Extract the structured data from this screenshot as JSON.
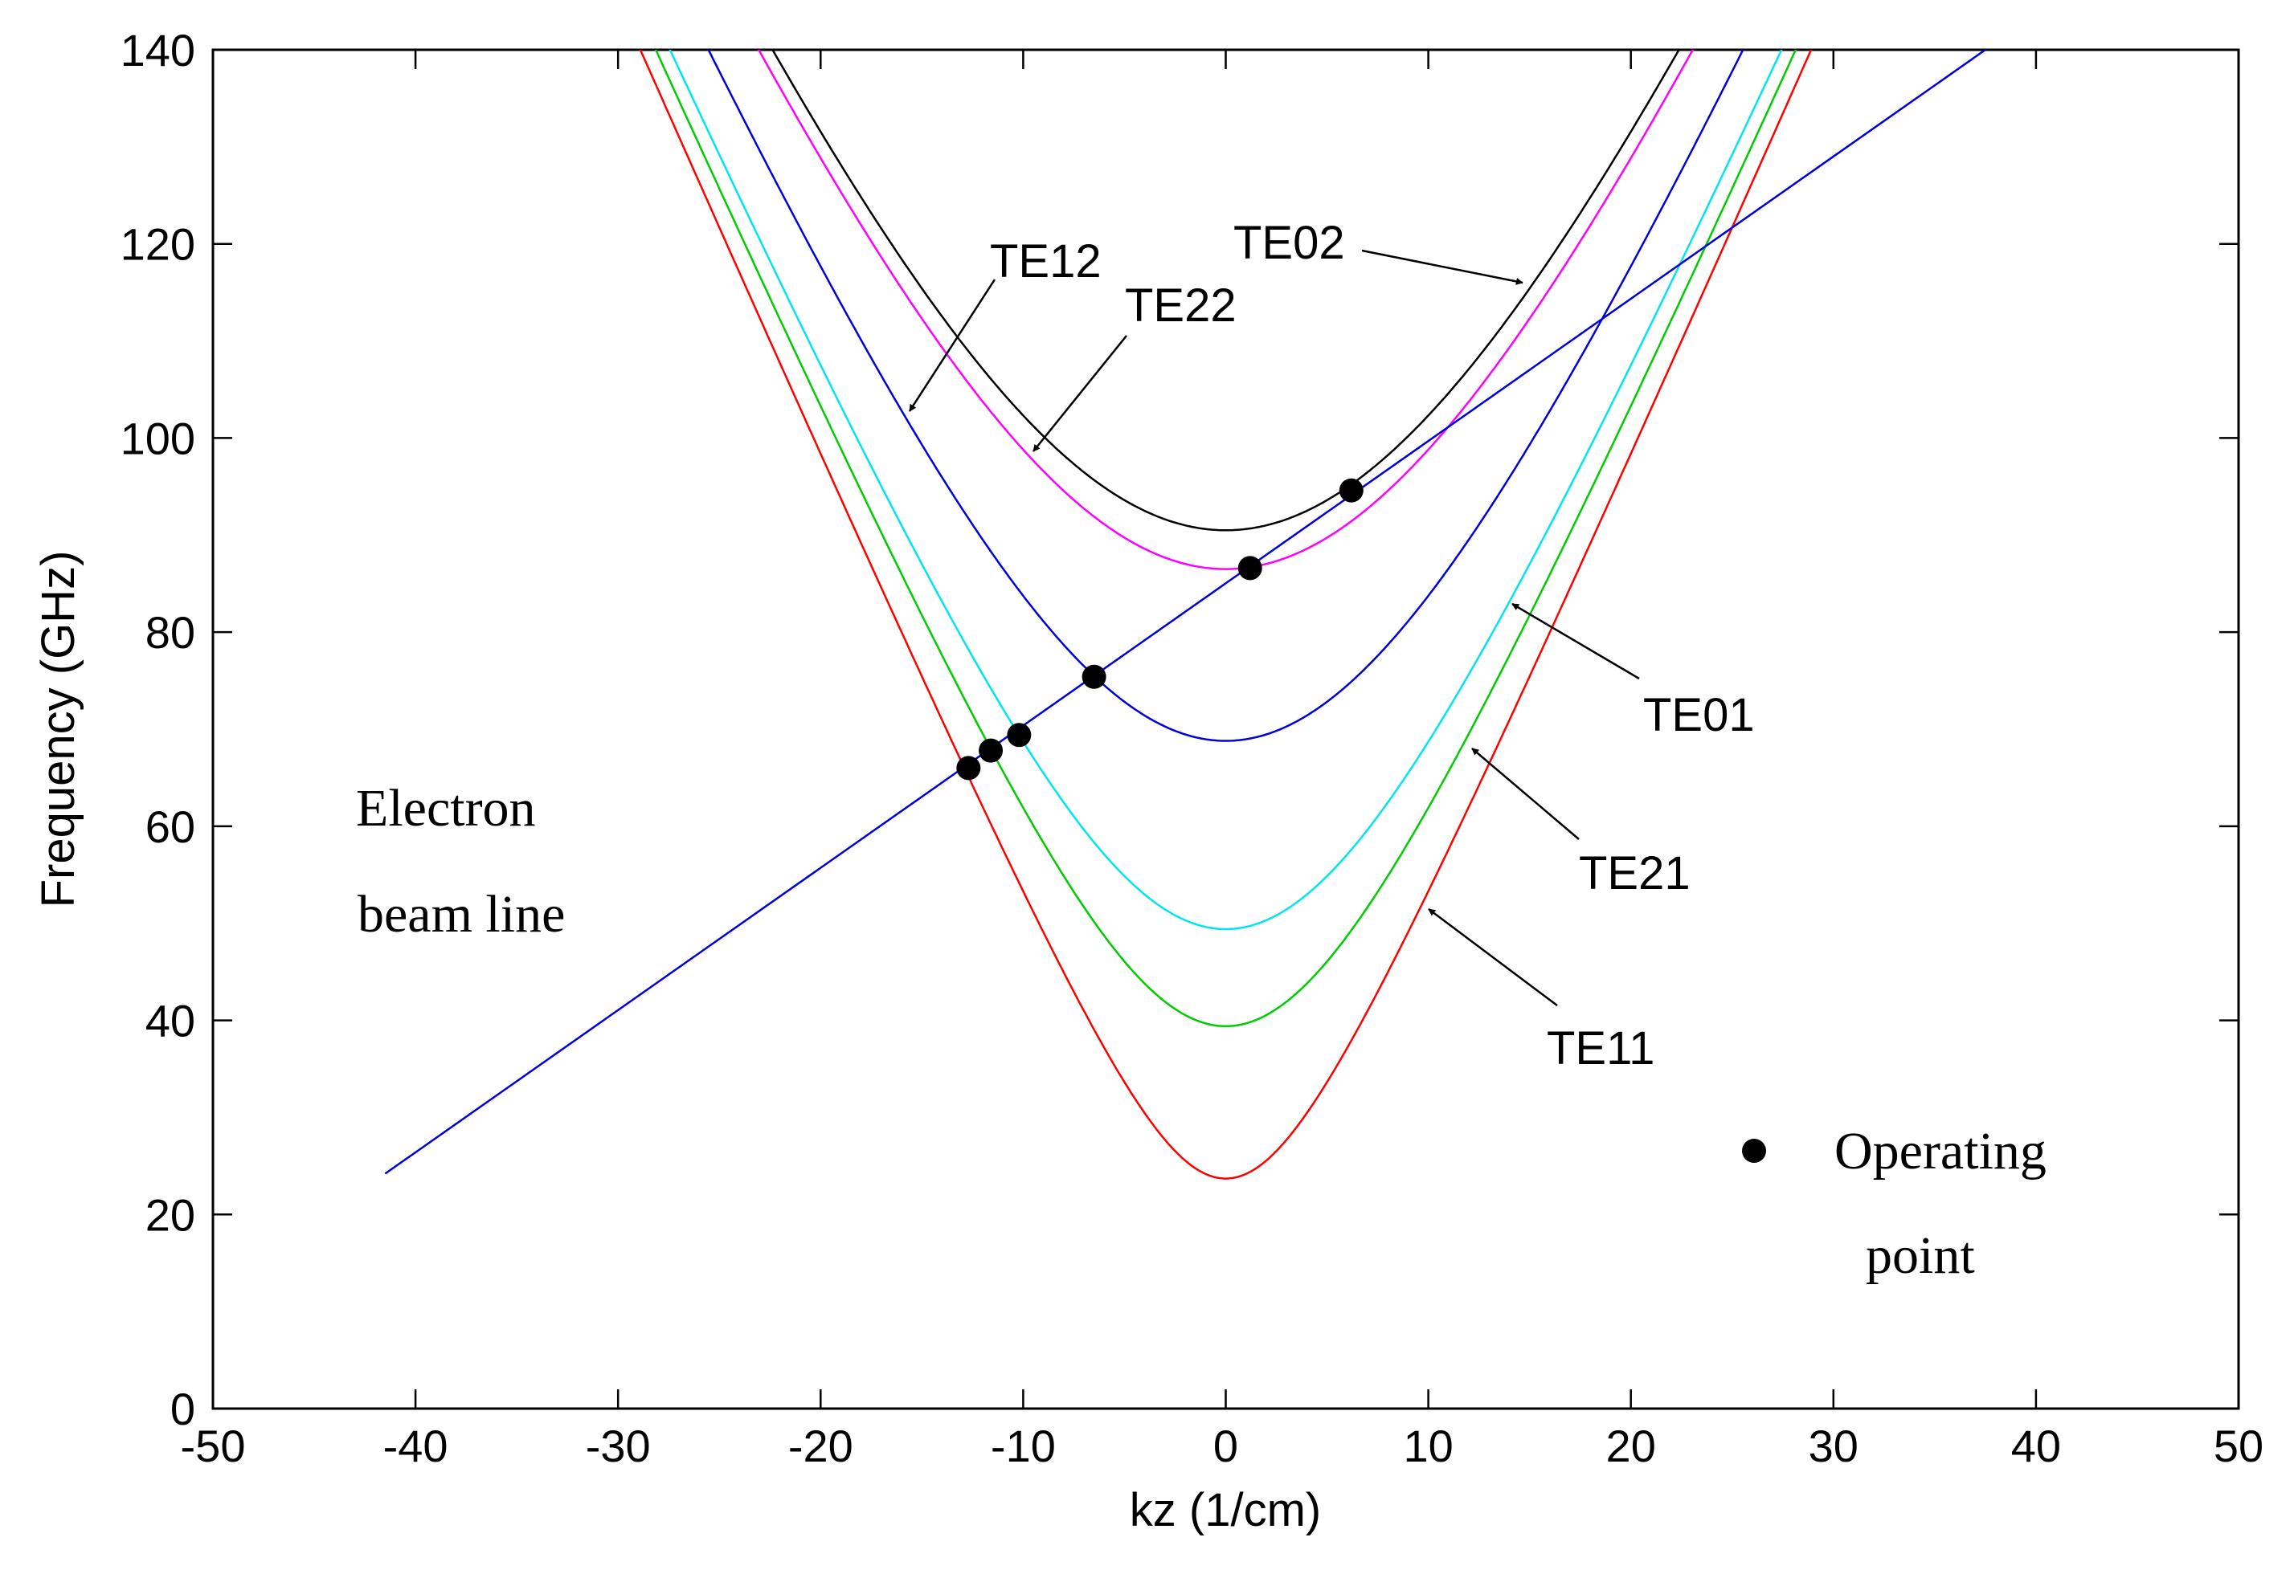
{
  "chart_data": {
    "type": "line",
    "title": "",
    "xlabel": "kz (1/cm)",
    "ylabel": "Frequency (GHz)",
    "xlim": [
      -50,
      50
    ],
    "ylim": [
      0,
      140
    ],
    "x_ticks": [
      "-50",
      "-40",
      "-30",
      "-20",
      "-10",
      "0",
      "10",
      "20",
      "30",
      "40",
      "50"
    ],
    "y_ticks": [
      "0",
      "20",
      "40",
      "60",
      "80",
      "100",
      "120",
      "140"
    ],
    "grid": false,
    "light_speed_slope_ghz_per_inv_cm": 4.7746,
    "series": [
      {
        "name": "TE11",
        "kind": "dispersion",
        "cutoff_ghz": 23.7,
        "color": "#ff0000"
      },
      {
        "name": "TE21",
        "kind": "dispersion",
        "cutoff_ghz": 39.4,
        "color": "#00cc00"
      },
      {
        "name": "TE01",
        "kind": "dispersion",
        "cutoff_ghz": 49.4,
        "color": "#00e5ee"
      },
      {
        "name": "TE12",
        "kind": "dispersion",
        "cutoff_ghz": 68.8,
        "color": "#0000dd"
      },
      {
        "name": "TE22",
        "kind": "dispersion",
        "cutoff_ghz": 86.5,
        "color": "#ff00ff"
      },
      {
        "name": "TE02",
        "kind": "dispersion",
        "cutoff_ghz": 90.5,
        "color": "#000000"
      },
      {
        "name": "Electron beam line",
        "kind": "line",
        "x": [
          -41.5,
          37.5
        ],
        "y": [
          24.2,
          140
        ],
        "color": "#0000dd"
      }
    ],
    "operating_points": [
      {
        "x": -12.7,
        "y": 66.0
      },
      {
        "x": -11.6,
        "y": 67.8
      },
      {
        "x": -10.2,
        "y": 69.4
      },
      {
        "x": -6.5,
        "y": 75.4
      },
      {
        "x": 1.2,
        "y": 86.6
      },
      {
        "x": 6.2,
        "y": 94.6
      }
    ],
    "annotations": [
      {
        "text": "TE02",
        "target": "TE02"
      },
      {
        "text": "TE12",
        "target": "TE12"
      },
      {
        "text": "TE22",
        "target": "TE22"
      },
      {
        "text": "TE01",
        "target": "TE01"
      },
      {
        "text": "TE21",
        "target": "TE21"
      },
      {
        "text": "TE11",
        "target": "TE11"
      }
    ],
    "beam_label_line1": "Electron",
    "beam_label_line2": "beam line",
    "legend_label_line1": "Operating",
    "legend_label_line2": "point",
    "legend_position": "bottom-right"
  }
}
